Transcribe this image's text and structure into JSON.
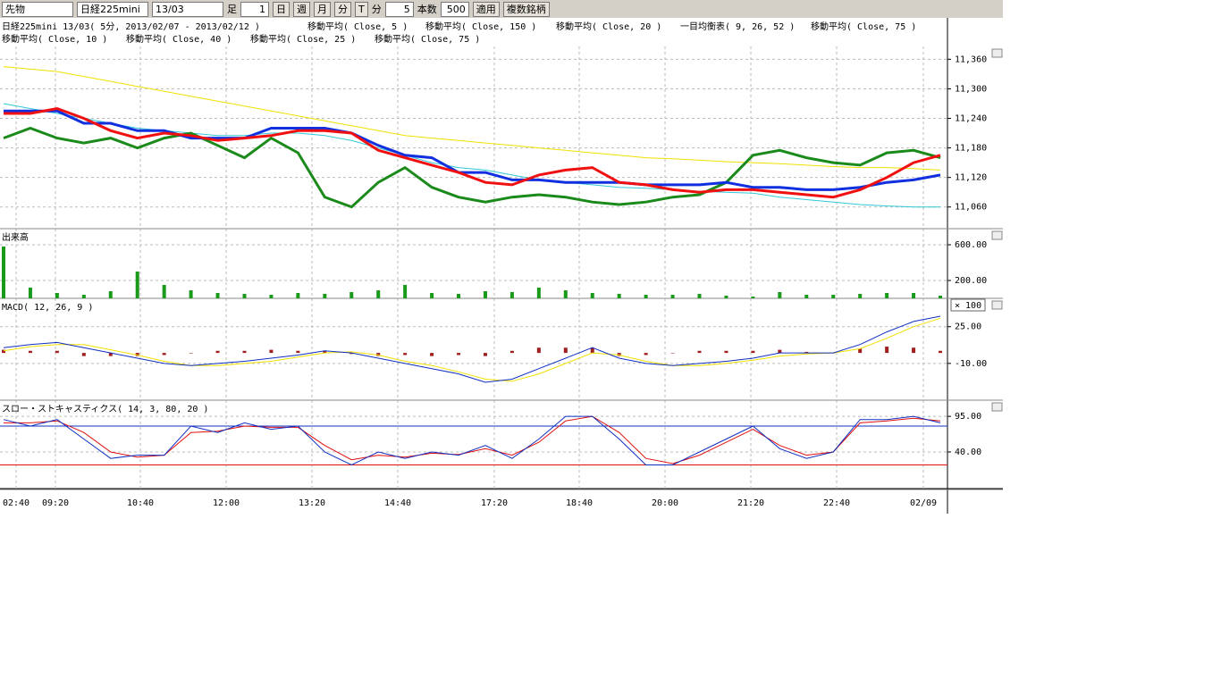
{
  "toolbar": {
    "selects": [
      "先物",
      "日経225mini",
      "13/03"
    ],
    "foot_label": "足",
    "foot_value": "1",
    "periods": [
      "日",
      "週",
      "月",
      "分",
      "T"
    ],
    "unit_label": "分",
    "unit_value": "5",
    "count_label": "本数",
    "count_value": "500",
    "apply": "適用",
    "multi": "複数銘柄"
  },
  "legend": {
    "line1": [
      "日経225mini 13/03( 5分, 2013/02/07 - 2013/02/12 )",
      "移動平均( Close, 5 )",
      "移動平均( Close, 150 )",
      "移動平均( Close, 20 )",
      "一目均衡表( 9, 26, 52 )",
      "移動平均( Close, 75 )"
    ],
    "line2": [
      "移動平均( Close, 10 )",
      "移動平均( Close, 40 )",
      "移動平均( Close, 25 )",
      "移動平均( Close, 75 )"
    ]
  },
  "x_labels": [
    "02:40",
    "09:20",
    "10:40",
    "12:00",
    "13:20",
    "14:40",
    "17:20",
    "18:40",
    "20:00",
    "21:20",
    "22:40",
    "02/09"
  ],
  "panels": [
    {
      "ylim": [
        11016,
        11386
      ],
      "yticks": [
        {
          "value": 11360,
          "label": "11,360"
        },
        {
          "value": 11300,
          "label": "11,300"
        },
        {
          "value": 11240,
          "label": "11,240"
        },
        {
          "value": 11180,
          "label": "11,180"
        },
        {
          "value": 11120,
          "label": "11,120"
        },
        {
          "value": 11060,
          "label": "11,060"
        }
      ],
      "series": [
        {
          "type": "line",
          "color": "#f0e000",
          "width": 1,
          "values": [
            11345,
            11340,
            11335,
            11325,
            11315,
            11305,
            11295,
            11285,
            11275,
            11265,
            11255,
            11245,
            11235,
            11225,
            11215,
            11205,
            11200,
            11195,
            11190,
            11185,
            11180,
            11175,
            11170,
            11165,
            11160,
            11158,
            11155,
            11152,
            11150,
            11148,
            11145,
            11142,
            11140,
            11140,
            11138,
            11135
          ]
        },
        {
          "type": "line",
          "color": "#30c8d8",
          "width": 1,
          "values": [
            11270,
            11260,
            11250,
            11240,
            11230,
            11220,
            11215,
            11210,
            11205,
            11205,
            11210,
            11210,
            11205,
            11195,
            11180,
            11165,
            11150,
            11140,
            11135,
            11125,
            11115,
            11110,
            11105,
            11100,
            11098,
            11095,
            11092,
            11090,
            11088,
            11080,
            11075,
            11070,
            11065,
            11062,
            11060,
            11060
          ]
        },
        {
          "type": "line",
          "color": "#1a8a1a",
          "width": 3,
          "values": [
            11200,
            11220,
            11200,
            11190,
            11200,
            11180,
            11200,
            11210,
            11185,
            11160,
            11200,
            11170,
            11080,
            11060,
            11110,
            11140,
            11100,
            11080,
            11070,
            11080,
            11085,
            11080,
            11070,
            11065,
            11070,
            11080,
            11085,
            11110,
            11165,
            11175,
            11160,
            11150,
            11145,
            11170,
            11175,
            11160
          ]
        },
        {
          "type": "line",
          "color": "#1030e0",
          "width": 3,
          "values": [
            11255,
            11255,
            11255,
            11230,
            11230,
            11215,
            11215,
            11200,
            11200,
            11200,
            11220,
            11220,
            11220,
            11210,
            11185,
            11165,
            11160,
            11130,
            11130,
            11115,
            11115,
            11110,
            11110,
            11110,
            11105,
            11105,
            11105,
            11110,
            11100,
            11100,
            11095,
            11095,
            11100,
            11110,
            11115,
            11125
          ]
        },
        {
          "type": "line",
          "color": "#f01010",
          "width": 3,
          "values": [
            11250,
            11250,
            11260,
            11240,
            11215,
            11200,
            11210,
            11205,
            11195,
            11200,
            11205,
            11215,
            11215,
            11210,
            11175,
            11160,
            11145,
            11130,
            11110,
            11105,
            11125,
            11135,
            11140,
            11110,
            11105,
            11095,
            11090,
            11095,
            11095,
            11090,
            11085,
            11080,
            11095,
            11120,
            11150,
            11165
          ]
        }
      ]
    },
    {
      "title": "出来高",
      "ylim": [
        0,
        780
      ],
      "yticks": [
        {
          "value": 600,
          "label": "600.00"
        },
        {
          "value": 200,
          "label": "200.00"
        }
      ],
      "series": [
        {
          "type": "bar",
          "color": "#1a9a1a",
          "values": [
            580,
            120,
            60,
            40,
            80,
            300,
            150,
            90,
            60,
            50,
            40,
            60,
            50,
            70,
            90,
            150,
            60,
            50,
            80,
            70,
            120,
            90,
            60,
            50,
            40,
            40,
            50,
            30,
            20,
            70,
            40,
            40,
            50,
            60,
            60,
            30
          ]
        }
      ]
    },
    {
      "title": "MACD( 12, 26, 9 )",
      "scale_note": "× 100",
      "ylim": [
        -45,
        52
      ],
      "yticks": [
        {
          "value": 25,
          "label": "25.00"
        },
        {
          "value": -10,
          "label": "-10.00"
        }
      ],
      "series": [
        {
          "type": "bar",
          "color": "#a02020",
          "values": [
            3,
            2,
            2,
            -3,
            -3,
            -3,
            -2,
            0,
            2,
            2,
            3,
            2,
            2,
            -1,
            -3,
            -2,
            -3,
            -2,
            -3,
            2,
            5,
            5,
            5,
            -3,
            -2,
            0,
            2,
            2,
            2,
            3,
            1,
            0,
            4,
            6,
            5,
            2
          ]
        },
        {
          "type": "line",
          "color": "#f0e000",
          "width": 1,
          "values": [
            2,
            6,
            8,
            8,
            3,
            -2,
            -8,
            -12,
            -12,
            -10,
            -8,
            -4,
            0,
            1,
            -2,
            -8,
            -12,
            -18,
            -25,
            -27,
            -20,
            -10,
            0,
            -2,
            -8,
            -12,
            -12,
            -10,
            -7,
            -3,
            -1,
            0,
            4,
            14,
            25,
            33
          ]
        },
        {
          "type": "line",
          "color": "#1030c0",
          "width": 1,
          "values": [
            5,
            8,
            10,
            5,
            0,
            -5,
            -10,
            -12,
            -10,
            -8,
            -5,
            -2,
            2,
            0,
            -5,
            -10,
            -15,
            -20,
            -28,
            -25,
            -15,
            -5,
            5,
            -5,
            -10,
            -12,
            -10,
            -8,
            -5,
            0,
            0,
            0,
            8,
            20,
            30,
            35
          ]
        }
      ]
    },
    {
      "title": "スロー・ストキャスティクス( 14, 3, 80, 20 )",
      "ylim": [
        -18,
        120
      ],
      "yticks": [
        {
          "value": 95,
          "label": "95.00"
        },
        {
          "value": 40,
          "label": "40.00"
        }
      ],
      "levels": [
        {
          "value": 80,
          "color": "#1030c0"
        },
        {
          "value": 20,
          "color": "#e01010"
        }
      ],
      "series": [
        {
          "type": "line",
          "color": "#e01010",
          "width": 1,
          "values": [
            85,
            85,
            88,
            70,
            40,
            32,
            35,
            70,
            72,
            80,
            78,
            78,
            50,
            28,
            35,
            32,
            38,
            36,
            45,
            35,
            55,
            88,
            95,
            70,
            30,
            22,
            35,
            55,
            75,
            50,
            35,
            40,
            85,
            88,
            92,
            88
          ]
        },
        {
          "type": "line",
          "color": "#1030c0",
          "width": 1,
          "values": [
            90,
            80,
            90,
            60,
            30,
            35,
            35,
            80,
            70,
            85,
            75,
            80,
            40,
            20,
            40,
            30,
            40,
            35,
            50,
            30,
            60,
            95,
            95,
            60,
            20,
            20,
            40,
            60,
            80,
            45,
            30,
            40,
            90,
            90,
            95,
            85
          ]
        }
      ]
    }
  ]
}
